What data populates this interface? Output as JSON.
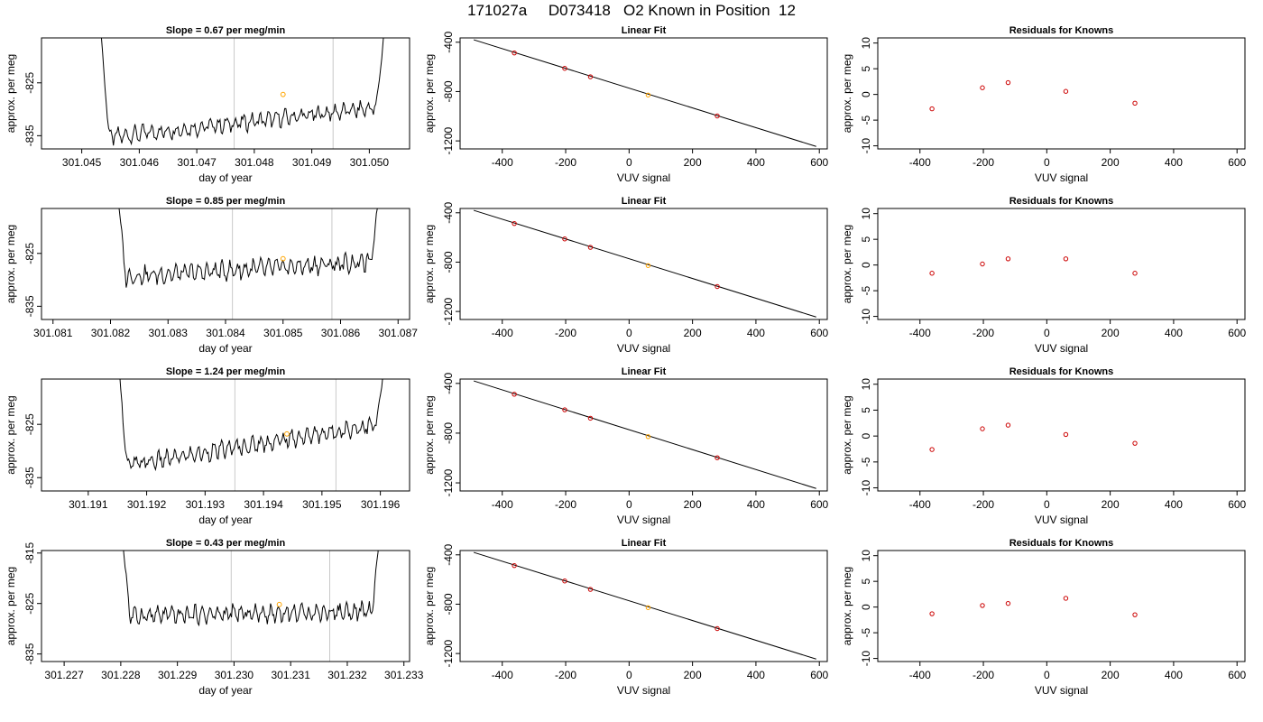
{
  "title": "171027a     D073418   O2 Known in Position  12",
  "chart_data": [
    {
      "row": 1,
      "type": "line",
      "title": "Slope =  0.67  per meg/min",
      "xlabel": "day of year",
      "ylabel": "approx. per meg",
      "xlim": [
        301.0443,
        301.0507
      ],
      "ylim": [
        -837.5,
        -816.5
      ],
      "xticks": [
        301.045,
        301.046,
        301.047,
        301.048,
        301.049,
        301.05
      ],
      "xtick_labels": [
        "301.045",
        "301.046",
        "301.047",
        "301.048",
        "301.049",
        "301.050"
      ],
      "yticks": [
        -835,
        -825
      ],
      "ytick_labels": [
        "-835",
        "-825"
      ],
      "vlines": [
        301.04765,
        301.04937
      ],
      "trace_start": 301.0453,
      "trace_end": 301.0503,
      "trace_level": [
        -835.5,
        -829.5
      ],
      "trace_amp": 2.0,
      "marker": {
        "x": 301.0485,
        "y": -827.2
      }
    },
    {
      "row": 1,
      "type": "scatter",
      "title": "Linear Fit",
      "xlabel": "VUV signal",
      "ylabel": "approx. per meg",
      "xlim": [
        -533,
        625
      ],
      "ylim": [
        -1265,
        -365
      ],
      "xticks": [
        -400,
        -200,
        0,
        200,
        400,
        600
      ],
      "xtick_labels": [
        "-400",
        "-200",
        "0",
        "200",
        "400",
        "600"
      ],
      "yticks": [
        -400,
        -800,
        -1200
      ],
      "ytick_labels": [
        "-400",
        "-800",
        "-1200"
      ],
      "fit_line": {
        "x": [
          -490,
          590
        ],
        "y": [
          -380,
          -1245
        ]
      },
      "points": [
        {
          "x": -362,
          "y": -487
        },
        {
          "x": -203,
          "y": -612
        },
        {
          "x": -122,
          "y": -680
        },
        {
          "x": 60,
          "y": -828
        },
        {
          "x": 278,
          "y": -998
        }
      ],
      "highlight_index": 3
    },
    {
      "row": 1,
      "type": "scatter",
      "title": "Residuals for Knowns",
      "xlabel": "VUV signal",
      "ylabel": "approx. per meg",
      "xlim": [
        -533,
        625
      ],
      "ylim": [
        -10.6,
        11
      ],
      "xticks": [
        -400,
        -200,
        0,
        200,
        400,
        600
      ],
      "xtick_labels": [
        "-400",
        "-200",
        "0",
        "200",
        "400",
        "600"
      ],
      "yticks": [
        -10,
        -5,
        0,
        5,
        10
      ],
      "ytick_labels": [
        "-10",
        "-5",
        "0",
        "5",
        "10"
      ],
      "points": [
        {
          "x": -362,
          "y": -2.8
        },
        {
          "x": -203,
          "y": 1.3
        },
        {
          "x": -122,
          "y": 2.3
        },
        {
          "x": 60,
          "y": 0.6
        },
        {
          "x": 278,
          "y": -1.7
        }
      ]
    },
    {
      "row": 2,
      "type": "line",
      "title": "Slope =  0.85  per meg/min",
      "xlabel": "day of year",
      "ylabel": "approx. per meg",
      "xlim": [
        301.0808,
        301.0872
      ],
      "ylim": [
        -837.5,
        -816.5
      ],
      "xticks": [
        301.081,
        301.082,
        301.083,
        301.084,
        301.085,
        301.086,
        301.087
      ],
      "xtick_labels": [
        "301.081",
        "301.082",
        "301.083",
        "301.084",
        "301.085",
        "301.086",
        "301.087"
      ],
      "yticks": [
        -835,
        -825
      ],
      "ytick_labels": [
        "-835",
        "-825"
      ],
      "vlines": [
        301.08412,
        301.08585
      ],
      "trace_start": 301.0821,
      "trace_end": 301.0867,
      "trace_level": [
        -829.5,
        -826.5
      ],
      "trace_amp": 2.2,
      "marker": {
        "x": 301.085,
        "y": -826.0
      }
    },
    {
      "row": 2,
      "type": "scatter",
      "title": "Linear Fit",
      "xlabel": "VUV signal",
      "ylabel": "approx. per meg",
      "xlim": [
        -533,
        625
      ],
      "ylim": [
        -1265,
        -365
      ],
      "xticks": [
        -400,
        -200,
        0,
        200,
        400,
        600
      ],
      "xtick_labels": [
        "-400",
        "-200",
        "0",
        "200",
        "400",
        "600"
      ],
      "yticks": [
        -400,
        -800,
        -1200
      ],
      "ytick_labels": [
        "-400",
        "-800",
        "-1200"
      ],
      "fit_line": {
        "x": [
          -490,
          590
        ],
        "y": [
          -380,
          -1245
        ]
      },
      "points": [
        {
          "x": -362,
          "y": -487
        },
        {
          "x": -203,
          "y": -612
        },
        {
          "x": -122,
          "y": -680
        },
        {
          "x": 60,
          "y": -828
        },
        {
          "x": 278,
          "y": -998
        }
      ],
      "highlight_index": 3
    },
    {
      "row": 2,
      "type": "scatter",
      "title": "Residuals for Knowns",
      "xlabel": "VUV signal",
      "ylabel": "approx. per meg",
      "xlim": [
        -533,
        625
      ],
      "ylim": [
        -10.6,
        11
      ],
      "xticks": [
        -400,
        -200,
        0,
        200,
        400,
        600
      ],
      "xtick_labels": [
        "-400",
        "-200",
        "0",
        "200",
        "400",
        "600"
      ],
      "yticks": [
        -10,
        -5,
        0,
        5,
        10
      ],
      "ytick_labels": [
        "-10",
        "-5",
        "0",
        "5",
        "10"
      ],
      "points": [
        {
          "x": -362,
          "y": -1.6
        },
        {
          "x": -203,
          "y": 0.2
        },
        {
          "x": -122,
          "y": 1.2
        },
        {
          "x": 60,
          "y": 1.2
        },
        {
          "x": 278,
          "y": -1.6
        }
      ]
    },
    {
      "row": 3,
      "type": "line",
      "title": "Slope =  1.24  per meg/min",
      "xlabel": "day of year",
      "ylabel": "approx. per meg",
      "xlim": [
        301.1902,
        301.1965
      ],
      "ylim": [
        -837.5,
        -816.5
      ],
      "xticks": [
        301.191,
        301.192,
        301.193,
        301.194,
        301.195,
        301.196
      ],
      "xtick_labels": [
        "301.191",
        "301.192",
        "301.193",
        "301.194",
        "301.195",
        "301.196"
      ],
      "yticks": [
        -835,
        -825
      ],
      "ytick_labels": [
        "-835",
        "-825"
      ],
      "vlines": [
        301.19351,
        301.19524
      ],
      "trace_start": 301.1915,
      "trace_end": 301.1961,
      "trace_level": [
        -833.0,
        -824.8
      ],
      "trace_amp": 2.0,
      "marker": {
        "x": 301.1944,
        "y": -826.8
      }
    },
    {
      "row": 3,
      "type": "scatter",
      "title": "Linear Fit",
      "xlabel": "VUV signal",
      "ylabel": "approx. per meg",
      "xlim": [
        -533,
        625
      ],
      "ylim": [
        -1265,
        -365
      ],
      "xticks": [
        -400,
        -200,
        0,
        200,
        400,
        600
      ],
      "xtick_labels": [
        "-400",
        "-200",
        "0",
        "200",
        "400",
        "600"
      ],
      "yticks": [
        -400,
        -800,
        -1200
      ],
      "ytick_labels": [
        "-400",
        "-800",
        "-1200"
      ],
      "fit_line": {
        "x": [
          -490,
          590
        ],
        "y": [
          -380,
          -1245
        ]
      },
      "points": [
        {
          "x": -362,
          "y": -487
        },
        {
          "x": -203,
          "y": -612
        },
        {
          "x": -122,
          "y": -680
        },
        {
          "x": 60,
          "y": -828
        },
        {
          "x": 278,
          "y": -998
        }
      ],
      "highlight_index": 3
    },
    {
      "row": 3,
      "type": "scatter",
      "title": "Residuals for Knowns",
      "xlabel": "VUV signal",
      "ylabel": "approx. per meg",
      "xlim": [
        -533,
        625
      ],
      "ylim": [
        -10.6,
        11
      ],
      "xticks": [
        -400,
        -200,
        0,
        200,
        400,
        600
      ],
      "xtick_labels": [
        "-400",
        "-200",
        "0",
        "200",
        "400",
        "600"
      ],
      "yticks": [
        -10,
        -5,
        0,
        5,
        10
      ],
      "ytick_labels": [
        "-10",
        "-5",
        "0",
        "5",
        "10"
      ],
      "points": [
        {
          "x": -362,
          "y": -2.6
        },
        {
          "x": -203,
          "y": 1.4
        },
        {
          "x": -122,
          "y": 2.1
        },
        {
          "x": 60,
          "y": 0.3
        },
        {
          "x": 278,
          "y": -1.4
        }
      ]
    },
    {
      "row": 4,
      "type": "line",
      "title": "Slope =  0.43  per meg/min",
      "xlabel": "day of year",
      "ylabel": "approx. per meg",
      "xlim": [
        301.2266,
        301.2331
      ],
      "ylim": [
        -836.5,
        -814.5
      ],
      "xticks": [
        301.227,
        301.228,
        301.229,
        301.23,
        301.231,
        301.232,
        301.233
      ],
      "xtick_labels": [
        "301.227",
        "301.228",
        "301.229",
        "301.230",
        "301.231",
        "301.232",
        "301.233"
      ],
      "yticks": [
        -835,
        -825,
        -815
      ],
      "ytick_labels": [
        "-835",
        "-825",
        "-815"
      ],
      "vlines": [
        301.22995,
        301.23169
      ],
      "trace_start": 301.228,
      "trace_end": 301.2326,
      "trace_level": [
        -827.5,
        -826.5
      ],
      "trace_amp": 2.2,
      "marker": {
        "x": 301.2308,
        "y": -825.2
      }
    },
    {
      "row": 4,
      "type": "scatter",
      "title": "Linear Fit",
      "xlabel": "VUV signal",
      "ylabel": "approx. per meg",
      "xlim": [
        -533,
        625
      ],
      "ylim": [
        -1265,
        -365
      ],
      "xticks": [
        -400,
        -200,
        0,
        200,
        400,
        600
      ],
      "xtick_labels": [
        "-400",
        "-200",
        "0",
        "200",
        "400",
        "600"
      ],
      "yticks": [
        -400,
        -800,
        -1200
      ],
      "ytick_labels": [
        "-400",
        "-800",
        "-1200"
      ],
      "fit_line": {
        "x": [
          -490,
          590
        ],
        "y": [
          -380,
          -1245
        ]
      },
      "points": [
        {
          "x": -362,
          "y": -487
        },
        {
          "x": -203,
          "y": -612
        },
        {
          "x": -122,
          "y": -680
        },
        {
          "x": 60,
          "y": -828
        },
        {
          "x": 278,
          "y": -998
        }
      ],
      "highlight_index": 3
    },
    {
      "row": 4,
      "type": "scatter",
      "title": "Residuals for Knowns",
      "xlabel": "VUV signal",
      "ylabel": "approx. per meg",
      "xlim": [
        -533,
        625
      ],
      "ylim": [
        -10.6,
        11
      ],
      "xticks": [
        -400,
        -200,
        0,
        200,
        400,
        600
      ],
      "xtick_labels": [
        "-400",
        "-200",
        "0",
        "200",
        "400",
        "600"
      ],
      "yticks": [
        -10,
        -5,
        0,
        5,
        10
      ],
      "ytick_labels": [
        "-10",
        "-5",
        "0",
        "5",
        "10"
      ],
      "points": [
        {
          "x": -362,
          "y": -1.3
        },
        {
          "x": -203,
          "y": 0.3
        },
        {
          "x": -122,
          "y": 0.7
        },
        {
          "x": 60,
          "y": 1.7
        },
        {
          "x": 278,
          "y": -1.5
        }
      ]
    }
  ],
  "colors": {
    "trace": "#000000",
    "fit_line": "#000000",
    "point": "#cc0000",
    "highlight": "#ffa500",
    "vline": "#c8c8c8",
    "axes": "#000000"
  }
}
